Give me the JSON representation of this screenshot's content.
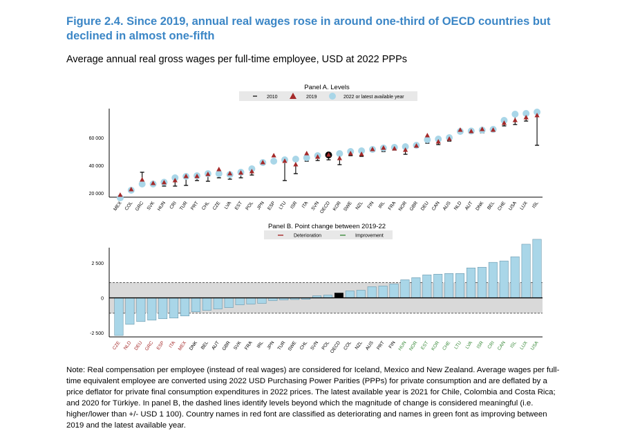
{
  "title": "Figure 2.4. Since 2019, annual real wages rose in around one-third of OECD countries but declined in almost one-fifth",
  "subtitle": "Average annual real gross wages per full-time employee, USD at 2022 PPPs",
  "note": "Note: Real compensation per employee (instead of real wages) are considered for Iceland, Mexico and New Zealand. Average wages per full-time equivalent employee are converted using 2022 USD Purchasing Power Parities (PPPs) for private consumption and are deflated by a price deflator for private final consumption expenditures in 2022 prices. The latest available year is 2021 for Chile, Colombia and Costa Rica; and 2020 for Türkiye. In panel B, the dashed lines identify levels beyond which the magnitude of change is considered meaningful (i.e. higher/lower than +/- USD 1 100). Country names in red font are classified as deteriorating and names in green font as improving between 2019 and the latest available year.",
  "colors": {
    "title": "#3b86c6",
    "light_blue": "#a9d6e8",
    "red": "#a52a2a",
    "green": "#3c8c3c",
    "black": "#000000",
    "band": "#d9d9d9"
  },
  "chart_data": [
    {
      "type": "scatter",
      "title": "Panel A. Levels",
      "legend": [
        "2010",
        "2019",
        "2022 or latest available year"
      ],
      "legend_position": "top",
      "ylim": [
        17000,
        81000
      ],
      "yticks": [
        20000,
        40000,
        60000
      ],
      "ytick_labels": [
        "20 000",
        "40 000",
        "60 000"
      ],
      "categories": [
        "MEX",
        "COL",
        "GRC",
        "SVK",
        "HUN",
        "CRI",
        "TUR",
        "PRT",
        "CHL",
        "CZE",
        "LVA",
        "EST",
        "POL",
        "JPN",
        "ESP",
        "LTU",
        "ISR",
        "ITA",
        "SVN",
        "OECD",
        "KOR",
        "SWE",
        "NZL",
        "FIN",
        "IRL",
        "FRA",
        "NOR",
        "GBR",
        "DEU",
        "CAN",
        "AUS",
        "NLD",
        "AUT",
        "DNK",
        "BEL",
        "CHE",
        "USA",
        "LUX",
        "ISL"
      ],
      "series": [
        {
          "name": "2010",
          "values": [
            17500,
            21500,
            35000,
            25500,
            25000,
            25000,
            25500,
            29000,
            28500,
            31000,
            30000,
            31000,
            33000,
            41000,
            43000,
            29000,
            34000,
            43000,
            43500,
            44000,
            40500,
            47000,
            46500,
            51000,
            50000,
            51000,
            48000,
            55000,
            56000,
            55000,
            57500,
            63000,
            63500,
            63500,
            64500,
            68500,
            69500,
            72000,
            54500
          ]
        },
        {
          "name": "2019",
          "values": [
            18500,
            22500,
            29500,
            27000,
            27500,
            29000,
            32000,
            32000,
            33500,
            37000,
            34000,
            34500,
            35500,
            42000,
            47000,
            43000,
            40500,
            48500,
            46000,
            47500,
            45000,
            48500,
            48000,
            51500,
            52500,
            52000,
            51000,
            54000,
            61500,
            57000,
            59000,
            65500,
            64500,
            66000,
            65500,
            70500,
            72500,
            74500,
            76000
          ]
        },
        {
          "name": "2022 or latest available year",
          "values": [
            16500,
            22000,
            26500,
            26500,
            27800,
            31000,
            32000,
            32500,
            34000,
            34000,
            33300,
            35000,
            37500,
            42000,
            43000,
            44000,
            44500,
            45500,
            47000,
            47500,
            48500,
            50000,
            50500,
            51500,
            52500,
            53000,
            53500,
            54500,
            58500,
            59000,
            60000,
            64500,
            64800,
            65500,
            66000,
            72500,
            77000,
            77500,
            78500
          ]
        }
      ]
    },
    {
      "type": "bar",
      "title": "Panel B. Point change between 2019-22",
      "legend": [
        "Deterioration",
        "Improvement"
      ],
      "legend_position": "top",
      "ylim": [
        -2800,
        3600
      ],
      "yticks": [
        -2500,
        0,
        2500
      ],
      "ytick_labels": [
        "-2 500",
        "0",
        "2 500"
      ],
      "threshold": 1100,
      "categories": [
        "CZE",
        "NLD",
        "DEU",
        "GRC",
        "ESP",
        "ITA",
        "MEX",
        "DNK",
        "BEL",
        "AUT",
        "GBR",
        "SVK",
        "FRA",
        "IRL",
        "JPN",
        "TUR",
        "SWE",
        "CHL",
        "SVN",
        "POL",
        "OECD",
        "COL",
        "NZL",
        "AUS",
        "PRT",
        "FIN",
        "HUN",
        "NOR",
        "EST",
        "KOR",
        "CHE",
        "LTU",
        "LVA",
        "ISR",
        "CRI",
        "CAN",
        "ISL",
        "LUX",
        "USA"
      ],
      "category_status": [
        "det",
        "det",
        "det",
        "det",
        "det",
        "det",
        "det",
        "neu",
        "neu",
        "neu",
        "neu",
        "neu",
        "neu",
        "neu",
        "neu",
        "neu",
        "neu",
        "neu",
        "neu",
        "neu",
        "neu",
        "neu",
        "neu",
        "neu",
        "neu",
        "neu",
        "imp",
        "imp",
        "imp",
        "imp",
        "imp",
        "imp",
        "imp",
        "imp",
        "imp",
        "imp",
        "imp",
        "imp",
        "imp"
      ],
      "values": [
        -2700,
        -1900,
        -1700,
        -1600,
        -1500,
        -1450,
        -1300,
        -1000,
        -900,
        -800,
        -700,
        -500,
        -450,
        -400,
        -200,
        -150,
        -120,
        -100,
        150,
        200,
        350,
        500,
        550,
        800,
        850,
        1000,
        1300,
        1450,
        1650,
        1700,
        1750,
        1750,
        2150,
        2200,
        2550,
        2650,
        2950,
        3850,
        4200
      ]
    }
  ]
}
